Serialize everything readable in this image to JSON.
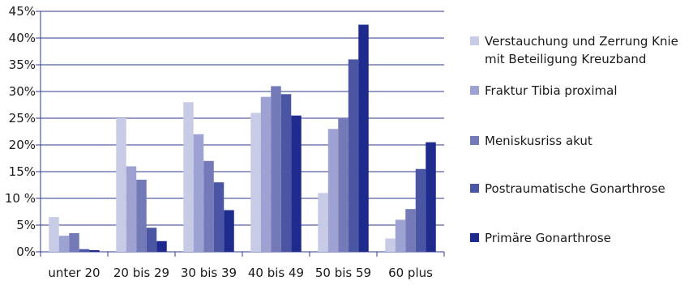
{
  "chart_data": {
    "type": "bar",
    "title": "",
    "xlabel": "",
    "ylabel": "",
    "categories": [
      "unter 20",
      "20 bis 29",
      "30 bis 39",
      "40 bis 49",
      "50 bis 59",
      "60 plus"
    ],
    "ylim": [
      0,
      45
    ],
    "yticks": [
      "0%",
      "5%",
      "10 %",
      "15%",
      "20%",
      "25%",
      "30%",
      "35%",
      "40%",
      "45%"
    ],
    "grid": true,
    "legend_position": "right",
    "series": [
      {
        "name": "Verstauchung und Zerrung Knie mit Beteiligung Kreuzband",
        "color": "#c8cbe6",
        "values": [
          6.5,
          25,
          28,
          26,
          11,
          2.5
        ]
      },
      {
        "name": "Fraktur Tibia proximal",
        "color": "#9ea2d3",
        "values": [
          3,
          16,
          22,
          29,
          23,
          6
        ]
      },
      {
        "name": "Meniskusriss akut",
        "color": "#747ab8",
        "values": [
          3.5,
          13.5,
          17,
          31,
          25,
          8
        ]
      },
      {
        "name": "Postraumatische Gonarthrose",
        "color": "#4a55a4",
        "values": [
          0.5,
          4.5,
          13,
          29.5,
          36,
          15.5
        ]
      },
      {
        "name": "Primäre Gonarthrose",
        "color": "#1e2a8c",
        "values": [
          0.3,
          2,
          7.8,
          25.5,
          42.5,
          20.5
        ]
      }
    ]
  }
}
